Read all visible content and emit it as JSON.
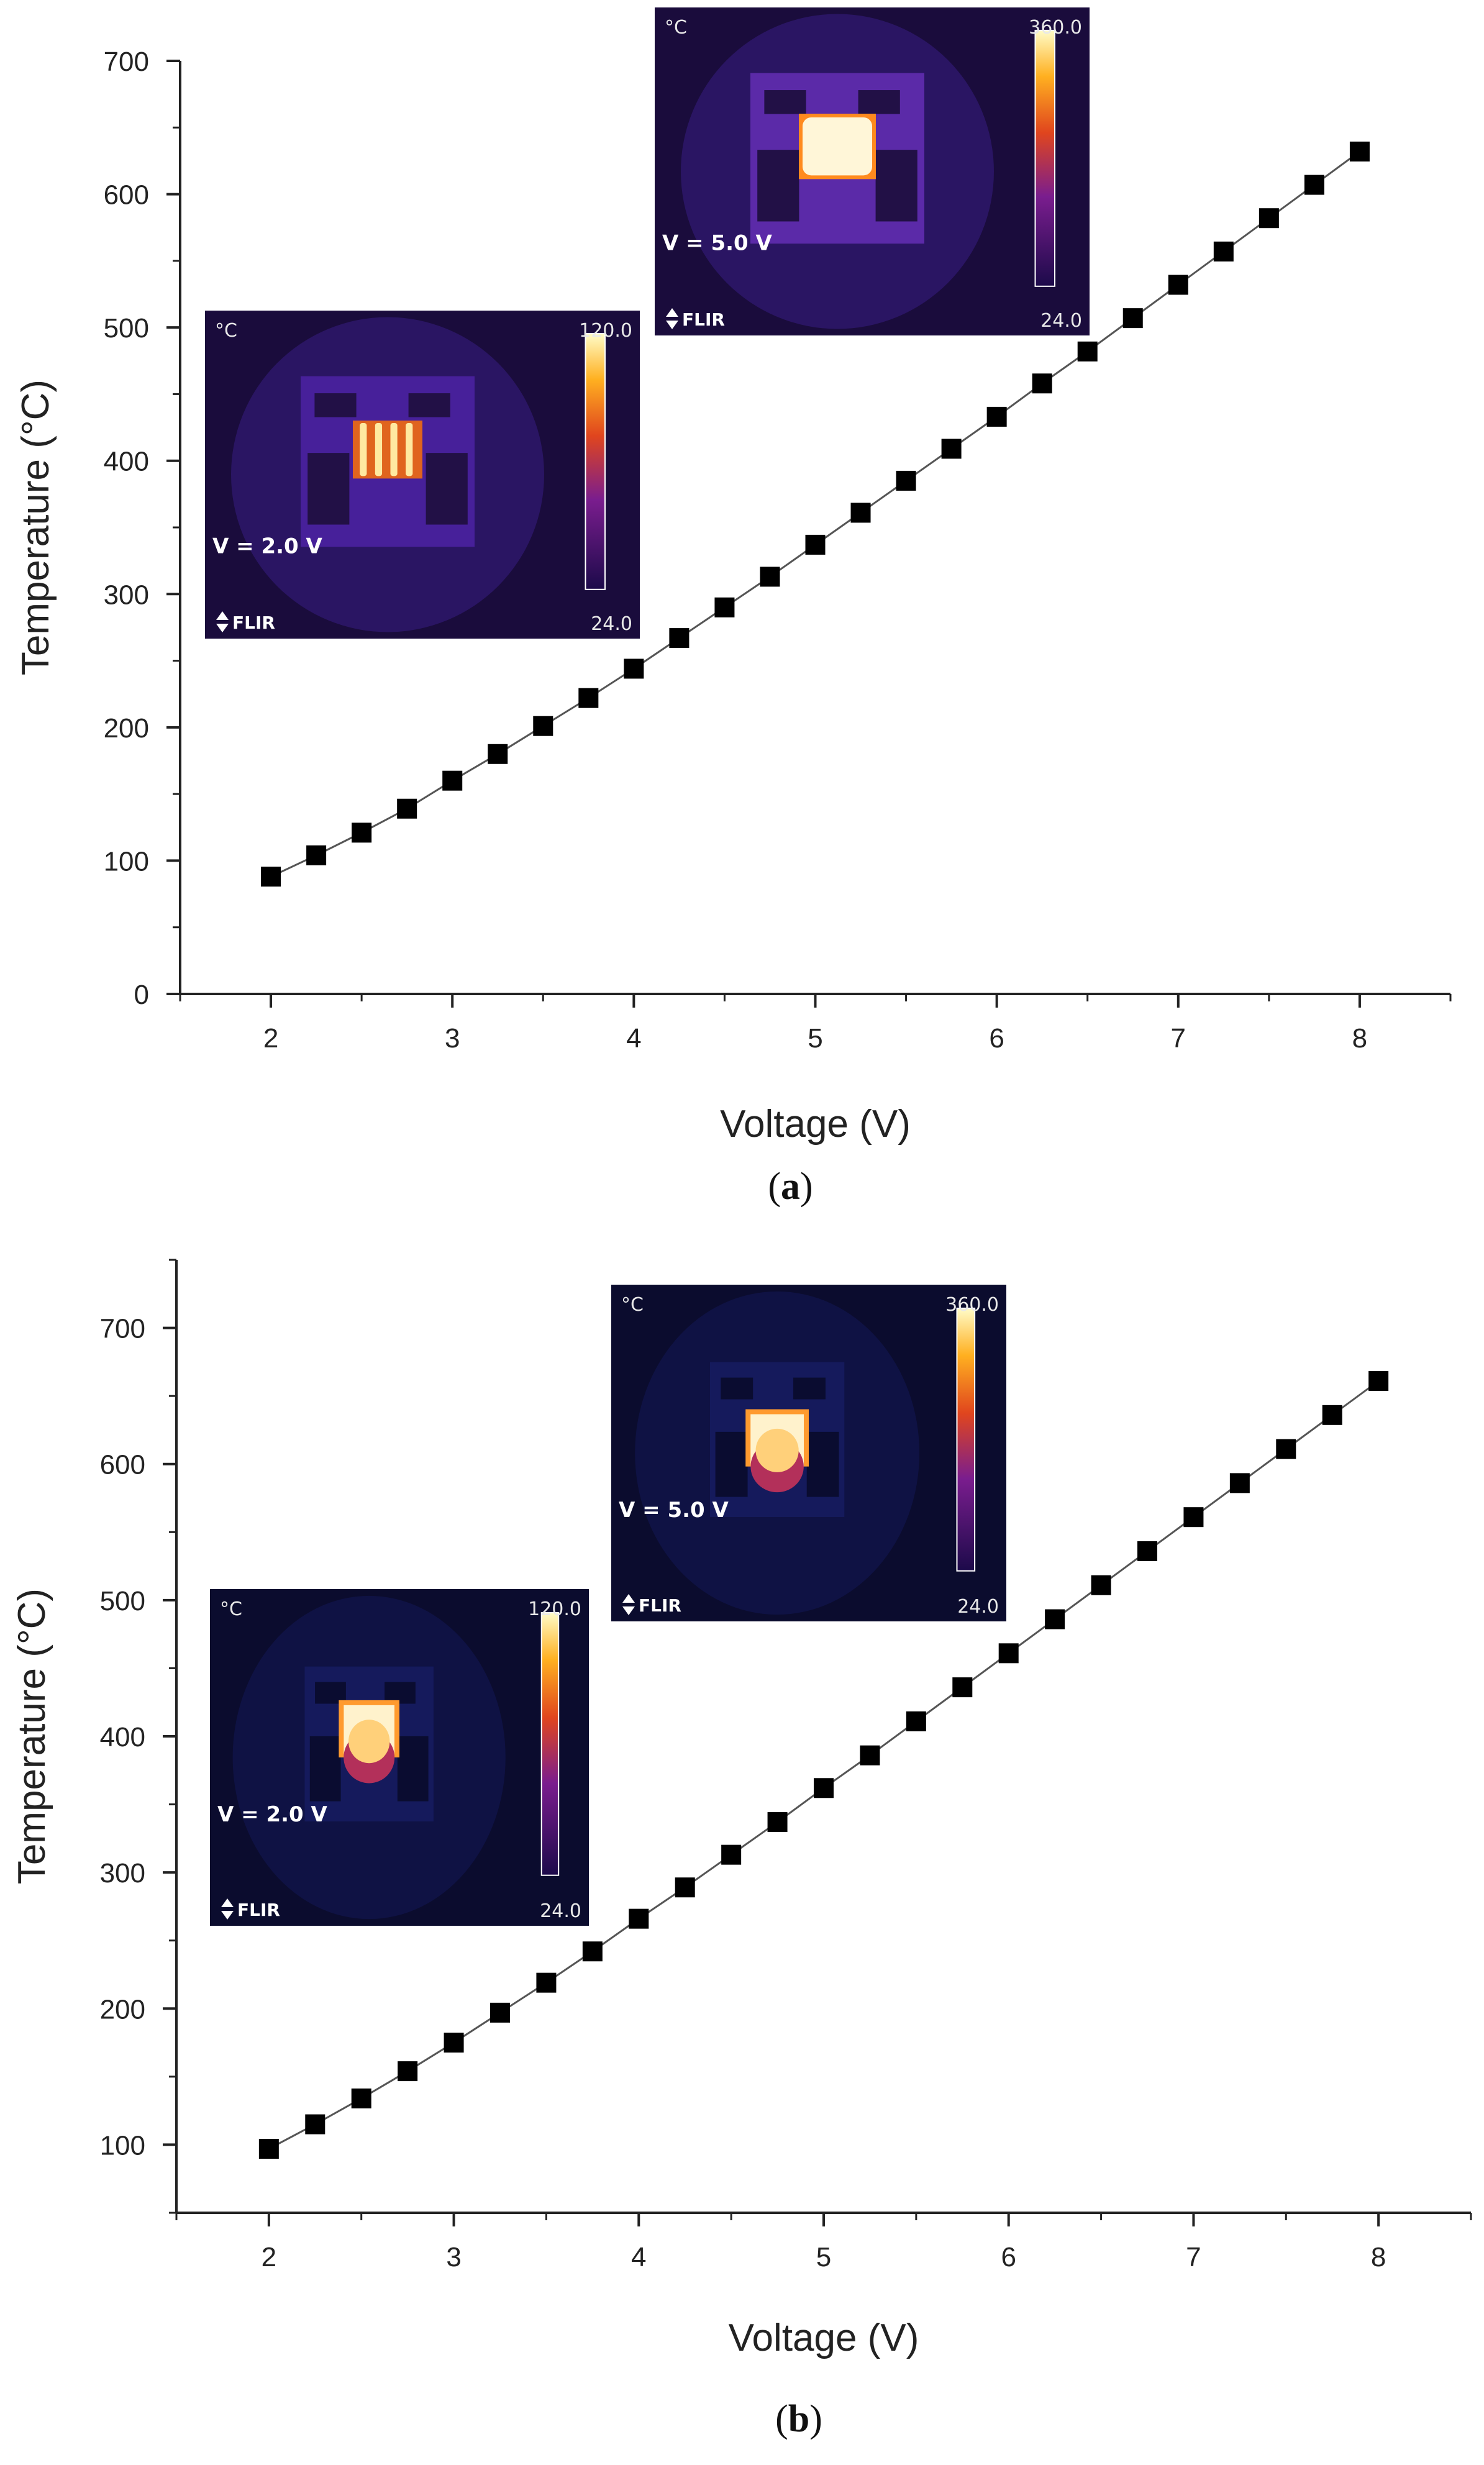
{
  "chart_data": [
    {
      "id": "a",
      "type": "scatter",
      "panel_label": "a",
      "xlabel": "Voltage (V)",
      "ylabel": "Temperature (°C)",
      "xlim": [
        1.5,
        8.5
      ],
      "ylim": [
        0,
        700
      ],
      "xticks": [
        2,
        3,
        4,
        5,
        6,
        7,
        8
      ],
      "yticks": [
        0,
        100,
        200,
        300,
        400,
        500,
        600,
        700
      ],
      "grid": false,
      "x": [
        2.0,
        2.25,
        2.5,
        2.75,
        3.0,
        3.25,
        3.5,
        3.75,
        4.0,
        4.25,
        4.5,
        4.75,
        5.0,
        5.25,
        5.5,
        5.75,
        6.0,
        6.25,
        6.5,
        6.75,
        7.0,
        7.25,
        7.5,
        7.75,
        8.0
      ],
      "y": [
        88,
        104,
        121,
        139,
        160,
        180,
        201,
        222,
        244,
        267,
        290,
        313,
        337,
        361,
        385,
        409,
        433,
        458,
        482,
        507,
        532,
        557,
        582,
        607,
        632
      ],
      "insets": [
        {
          "unit": "°C",
          "scale_max": "120.0",
          "scale_min": "24.0",
          "voltage": "V = 2.0 V",
          "logo": "FLIR",
          "pattern": "lines"
        },
        {
          "unit": "°C",
          "scale_max": "360.0",
          "scale_min": "24.0",
          "voltage": "V = 5.0 V",
          "logo": "FLIR",
          "pattern": "block"
        }
      ]
    },
    {
      "id": "b",
      "type": "scatter",
      "panel_label": "b",
      "xlabel": "Voltage (V)",
      "ylabel": "Temperature (°C)",
      "xlim": [
        1.5,
        8.5
      ],
      "ylim": [
        50,
        750
      ],
      "xticks": [
        2,
        3,
        4,
        5,
        6,
        7,
        8
      ],
      "yticks": [
        100,
        200,
        300,
        400,
        500,
        600,
        700
      ],
      "grid": false,
      "x": [
        2.0,
        2.25,
        2.5,
        2.75,
        3.0,
        3.25,
        3.5,
        3.75,
        4.0,
        4.25,
        4.5,
        4.75,
        5.0,
        5.25,
        5.5,
        5.75,
        6.0,
        6.25,
        6.5,
        6.75,
        7.0,
        7.25,
        7.5,
        7.75,
        8.0
      ],
      "y": [
        97,
        115,
        134,
        154,
        175,
        197,
        219,
        242,
        266,
        289,
        313,
        337,
        362,
        386,
        411,
        436,
        461,
        486,
        511,
        536,
        561,
        586,
        611,
        636,
        661
      ],
      "insets": [
        {
          "unit": "°C",
          "scale_max": "120.0",
          "scale_min": "24.0",
          "voltage": "V = 2.0 V",
          "logo": "FLIR",
          "pattern": "heater"
        },
        {
          "unit": "°C",
          "scale_max": "360.0",
          "scale_min": "24.0",
          "voltage": "V = 5.0 V",
          "logo": "FLIR",
          "pattern": "heater"
        }
      ]
    }
  ]
}
